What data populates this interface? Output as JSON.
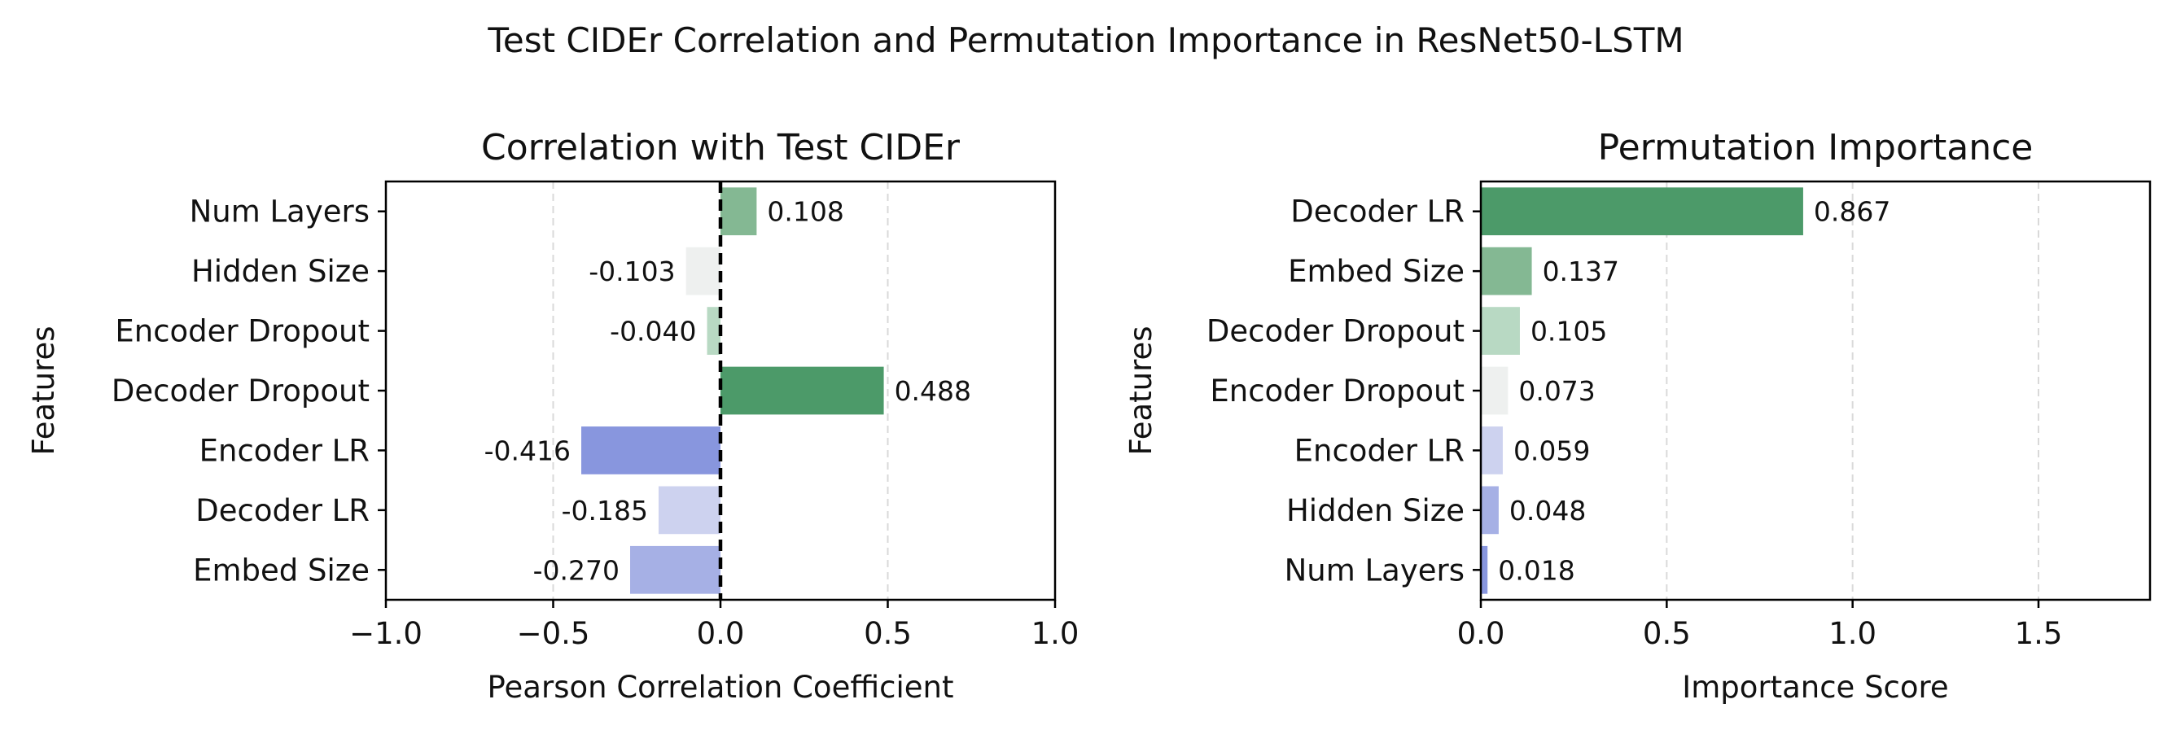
{
  "figure_title": "Test CIDEr Correlation and Permutation Importance in ResNet50-LSTM",
  "chart_data": [
    {
      "type": "bar",
      "orientation": "horizontal",
      "title": "Correlation with Test CIDEr",
      "xlabel": "Pearson Correlation Coefficient",
      "ylabel": "Features",
      "xlim": [
        -1.0,
        1.0
      ],
      "xticks": [
        -1.0,
        -0.5,
        0.0,
        0.5,
        1.0
      ],
      "xtick_labels": [
        "−1.0",
        "−0.5",
        "0.0",
        "0.5",
        "1.0"
      ],
      "grid": "x, dashed",
      "zero_line": true,
      "categories": [
        "Num Layers",
        "Hidden Size",
        "Encoder Dropout",
        "Decoder Dropout",
        "Encoder LR",
        "Decoder LR",
        "Embed Size"
      ],
      "values": [
        0.108,
        -0.103,
        -0.04,
        0.488,
        -0.416,
        -0.185,
        -0.27
      ],
      "data_labels": [
        "0.108",
        "-0.103",
        "-0.040",
        "0.488",
        "-0.416",
        "-0.185",
        "-0.270"
      ],
      "colors": [
        "#84b893",
        "#eef0ef",
        "#b8d9c3",
        "#4c9a69",
        "#8896de",
        "#cdd2ef",
        "#a6b0e5"
      ]
    },
    {
      "type": "bar",
      "orientation": "horizontal",
      "title": "Permutation Importance",
      "xlabel": "Importance Score",
      "ylabel": "Features",
      "xlim": [
        0.0,
        1.8
      ],
      "xticks": [
        0.0,
        0.5,
        1.0,
        1.5
      ],
      "xtick_labels": [
        "0.0",
        "0.5",
        "1.0",
        "1.5"
      ],
      "grid": "x, dashed",
      "zero_line": false,
      "categories": [
        "Decoder LR",
        "Embed Size",
        "Decoder Dropout",
        "Encoder Dropout",
        "Encoder LR",
        "Hidden Size",
        "Num Layers"
      ],
      "values": [
        0.867,
        0.137,
        0.105,
        0.073,
        0.059,
        0.048,
        0.018
      ],
      "data_labels": [
        "0.867",
        "0.137",
        "0.105",
        "0.073",
        "0.059",
        "0.048",
        "0.018"
      ],
      "colors": [
        "#4c9a69",
        "#84b893",
        "#b8d9c3",
        "#eef0ef",
        "#cdd2ef",
        "#a6b0e5",
        "#8896de"
      ]
    }
  ]
}
